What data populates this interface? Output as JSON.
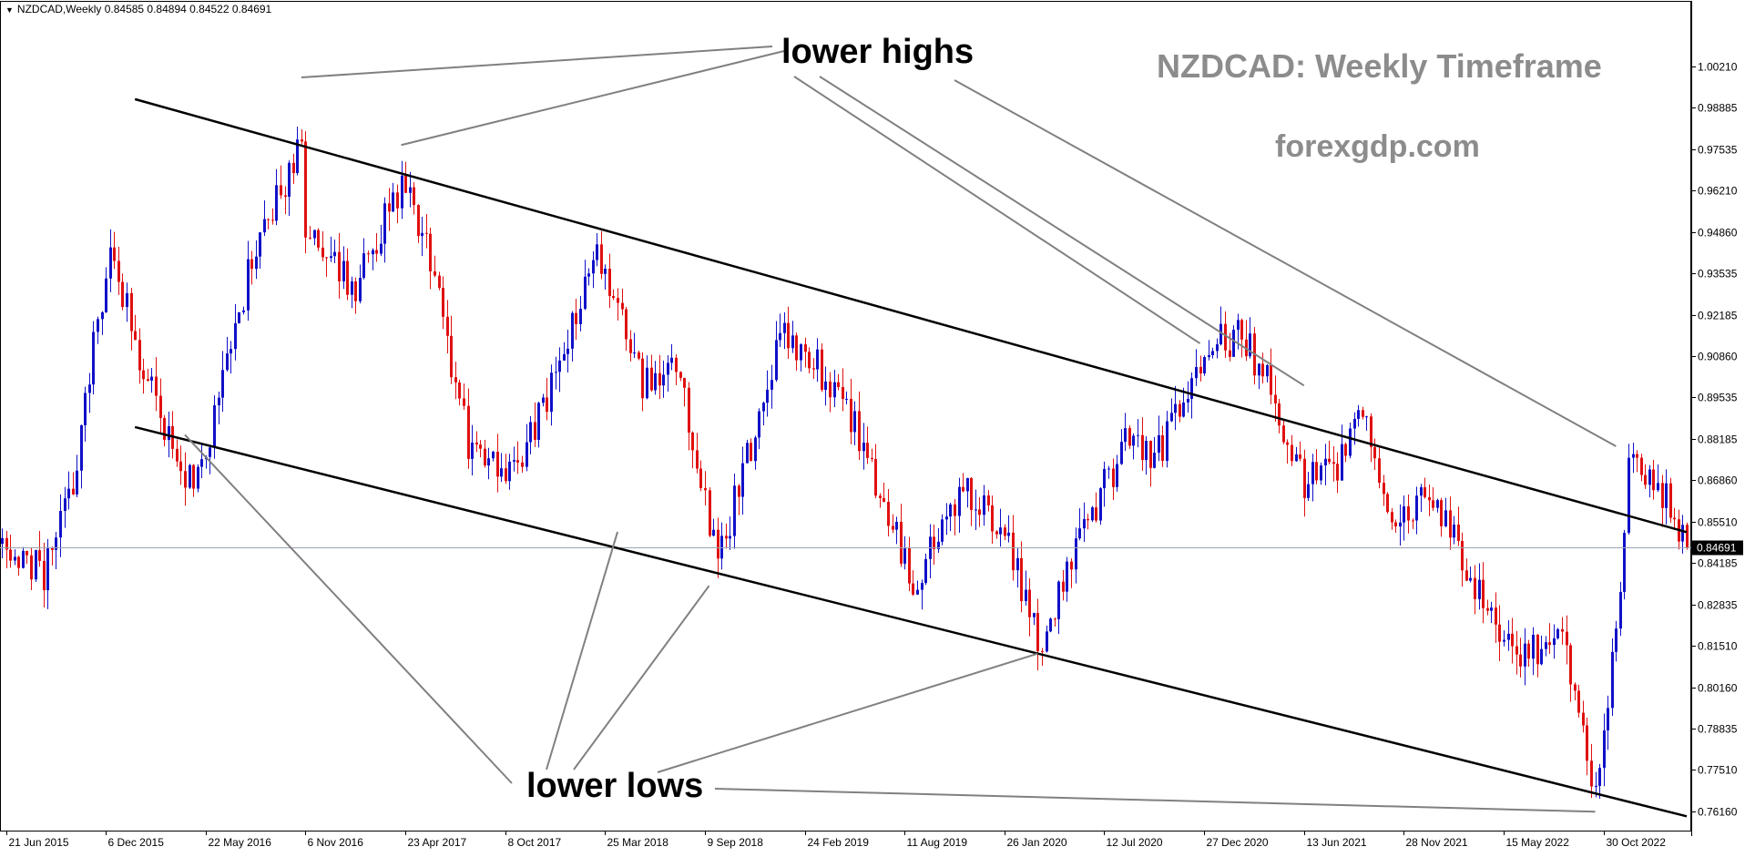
{
  "header": {
    "symbol_line": "NZDCAD,Weekly  0.84585 0.84894 0.84522 0.84691"
  },
  "watermark": {
    "title": "NZDCAD: Weekly Timeframe",
    "site": "forexgdp.com"
  },
  "annotations": {
    "highs_label": "lower highs",
    "lows_label": "lower lows"
  },
  "colors": {
    "bull": "#1010c8",
    "bear": "#e01010",
    "trendline": "#000000",
    "pointer": "#808080",
    "current_price_line": "#9aa4b0",
    "price_tag_bg": "#000000",
    "price_tag_text": "#ffffff"
  },
  "chart_data": {
    "type": "candlestick",
    "title": "NZDCAD: Weekly Timeframe",
    "xlabel": "",
    "ylabel": "",
    "ylim": [
      0.7555,
      1.0232
    ],
    "y_ticks": [
      "1.00210",
      "0.98885",
      "0.97535",
      "0.96210",
      "0.94860",
      "0.93535",
      "0.92185",
      "0.90860",
      "0.89535",
      "0.88185",
      "0.86860",
      "0.85510",
      "0.84185",
      "0.82835",
      "0.81510",
      "0.80160",
      "0.78835",
      "0.77510",
      "0.76160"
    ],
    "current_price": "0.84691",
    "x_ticks": [
      "21 Jun 2015",
      "6 Dec 2015",
      "22 May 2016",
      "6 Nov 2016",
      "23 Apr 2017",
      "8 Oct 2017",
      "25 Mar 2018",
      "9 Sep 2018",
      "24 Feb 2019",
      "11 Aug 2019",
      "26 Jan 2020",
      "12 Jul 2020",
      "27 Dec 2020",
      "13 Jun 2021",
      "28 Nov 2021",
      "15 May 2022",
      "30 Oct 2022"
    ],
    "x_range": [
      "2015-06-14",
      "2023-03-19"
    ],
    "price_path": [
      {
        "date": "2015-06-14",
        "close": 0.848
      },
      {
        "date": "2015-08-23",
        "close": 0.838
      },
      {
        "date": "2015-10-11",
        "close": 0.868
      },
      {
        "date": "2015-12-13",
        "close": 0.945
      },
      {
        "date": "2016-01-24",
        "close": 0.912
      },
      {
        "date": "2016-03-20",
        "close": 0.88
      },
      {
        "date": "2016-04-17",
        "close": 0.868
      },
      {
        "date": "2016-05-22",
        "close": 0.875
      },
      {
        "date": "2016-08-07",
        "close": 0.94
      },
      {
        "date": "2016-10-30",
        "close": 0.978
      },
      {
        "date": "2016-11-06",
        "close": 0.952
      },
      {
        "date": "2017-01-29",
        "close": 0.93
      },
      {
        "date": "2017-04-16",
        "close": 0.965
      },
      {
        "date": "2017-05-21",
        "close": 0.95
      },
      {
        "date": "2017-08-13",
        "close": 0.875
      },
      {
        "date": "2017-10-29",
        "close": 0.872
      },
      {
        "date": "2018-01-07",
        "close": 0.905
      },
      {
        "date": "2018-03-11",
        "close": 0.945
      },
      {
        "date": "2018-05-27",
        "close": 0.898
      },
      {
        "date": "2018-07-22",
        "close": 0.905
      },
      {
        "date": "2018-09-30",
        "close": 0.842
      },
      {
        "date": "2018-11-25",
        "close": 0.88
      },
      {
        "date": "2019-01-20",
        "close": 0.918
      },
      {
        "date": "2019-03-31",
        "close": 0.902
      },
      {
        "date": "2019-05-19",
        "close": 0.885
      },
      {
        "date": "2019-08-25",
        "close": 0.835
      },
      {
        "date": "2019-11-17",
        "close": 0.865
      },
      {
        "date": "2020-01-26",
        "close": 0.855
      },
      {
        "date": "2020-03-22",
        "close": 0.815
      },
      {
        "date": "2020-05-24",
        "close": 0.848
      },
      {
        "date": "2020-08-16",
        "close": 0.88
      },
      {
        "date": "2020-10-04",
        "close": 0.875
      },
      {
        "date": "2021-01-03",
        "close": 0.912
      },
      {
        "date": "2021-02-21",
        "close": 0.915
      },
      {
        "date": "2021-04-04",
        "close": 0.905
      },
      {
        "date": "2021-06-13",
        "close": 0.868
      },
      {
        "date": "2021-08-08",
        "close": 0.872
      },
      {
        "date": "2021-09-19",
        "close": 0.888
      },
      {
        "date": "2021-11-14",
        "close": 0.855
      },
      {
        "date": "2022-01-09",
        "close": 0.868
      },
      {
        "date": "2022-04-10",
        "close": 0.828
      },
      {
        "date": "2022-06-05",
        "close": 0.81
      },
      {
        "date": "2022-08-21",
        "close": 0.818
      },
      {
        "date": "2022-10-16",
        "close": 0.768
      },
      {
        "date": "2022-11-27",
        "close": 0.83
      },
      {
        "date": "2022-12-11",
        "close": 0.875
      },
      {
        "date": "2023-02-05",
        "close": 0.865
      },
      {
        "date": "2023-03-19",
        "close": 0.847
      }
    ],
    "upper_trendline": [
      {
        "date": "2016-01-24",
        "price": 0.9915
      },
      {
        "date": "2023-03-19",
        "price": 0.8518
      }
    ],
    "lower_trendline": [
      {
        "date": "2016-01-24",
        "price": 0.8857
      },
      {
        "date": "2023-03-19",
        "price": 0.7601
      }
    ],
    "lower_highs": [
      {
        "date": "2016-10-30",
        "price": 0.9985
      },
      {
        "date": "2017-04-16",
        "price": 0.9767
      },
      {
        "date": "2020-12-20",
        "price": 0.9127
      },
      {
        "date": "2021-06-13",
        "price": 0.8991
      },
      {
        "date": "2022-11-20",
        "price": 0.8795
      }
    ],
    "lower_lows": [
      {
        "date": "2016-04-17",
        "price": 0.8832
      },
      {
        "date": "2018-09-16",
        "price": 0.8345
      },
      {
        "date": "2020-03-22",
        "price": 0.8126
      },
      {
        "date": "2022-10-16",
        "price": 0.7616
      }
    ]
  }
}
